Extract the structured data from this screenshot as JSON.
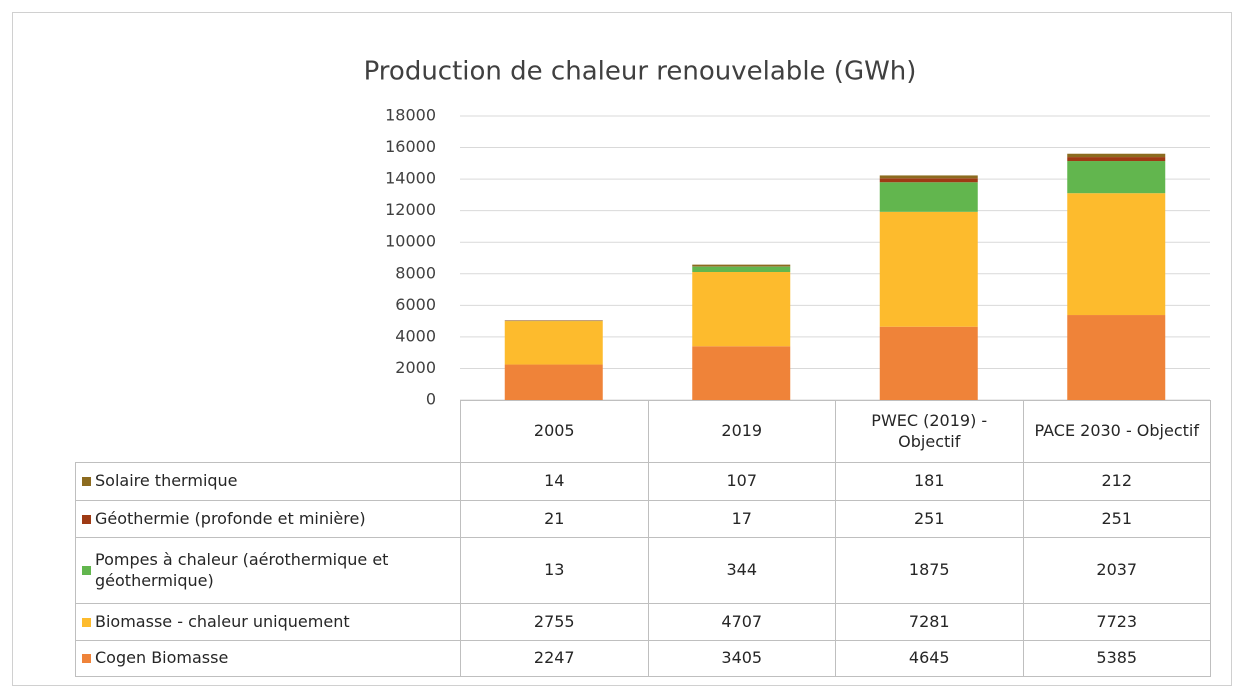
{
  "chart_data": {
    "type": "stacked_bar",
    "title": "Production de chaleur renouvelable (GWh)",
    "categories": [
      "2005",
      "2019",
      "PWEC (2019) - Objectif",
      "PACE 2030 - Objectif"
    ],
    "series": [
      {
        "name": "Solaire thermique",
        "color": "#8C6B1F",
        "values": [
          14,
          107,
          181,
          212
        ]
      },
      {
        "name": "Géothermie (profonde et minière)",
        "color": "#9E3A14",
        "values": [
          21,
          17,
          251,
          251
        ]
      },
      {
        "name": "Pompes à chaleur (aérothermique et géothermique)",
        "color": "#62B64E",
        "values": [
          13,
          344,
          1875,
          2037
        ]
      },
      {
        "name": "Biomasse - chaleur uniquement",
        "color": "#FDBB2D",
        "values": [
          2755,
          4707,
          7281,
          7723
        ]
      },
      {
        "name": "Cogen Biomasse",
        "color": "#EF8339",
        "values": [
          2247,
          3405,
          4645,
          5385
        ]
      }
    ],
    "ylim": [
      0,
      18000
    ],
    "yticks": [
      0,
      2000,
      4000,
      6000,
      8000,
      10000,
      12000,
      14000,
      16000,
      18000
    ],
    "grid": true
  }
}
